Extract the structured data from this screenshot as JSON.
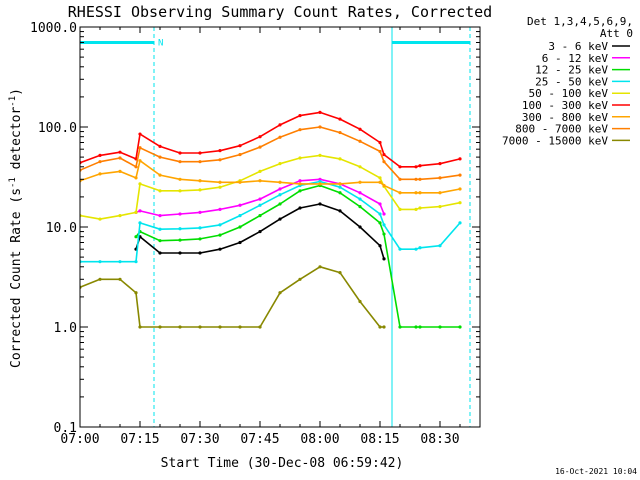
{
  "chart_data": {
    "type": "line",
    "title": "RHESSI Observing Summary Count Rates, Corrected",
    "xlabel": "Start Time (30-Dec-08 06:59:42)",
    "ylabel_main": "Corrected Count Rate (s",
    "ylabel_exp1": "-1",
    "ylabel_mid": " detector",
    "ylabel_exp2": "-1",
    "ylabel_close": ")",
    "yscale": "log",
    "ylim": [
      0.1,
      1000
    ],
    "xlim_minutes": [
      0,
      100
    ],
    "x_ticks": [
      {
        "t": 0,
        "label": "07:00"
      },
      {
        "t": 15,
        "label": "07:15"
      },
      {
        "t": 30,
        "label": "07:30"
      },
      {
        "t": 45,
        "label": "07:45"
      },
      {
        "t": 60,
        "label": "08:00"
      },
      {
        "t": 75,
        "label": "08:15"
      },
      {
        "t": 90,
        "label": "08:30"
      }
    ],
    "y_ticks": [
      {
        "v": 0.1,
        "label": "0.1"
      },
      {
        "v": 1,
        "label": "1.0"
      },
      {
        "v": 10,
        "label": "10.0"
      },
      {
        "v": 100,
        "label": "100.0"
      },
      {
        "v": 1000,
        "label": "1000.0"
      }
    ],
    "legend_header": [
      "Det 1,3,4,5,6,9,",
      "Att 0"
    ],
    "legend_position": "right",
    "timestamp": "16-Oct-2021 10:04",
    "annotations": [
      {
        "t": 19,
        "label": "N"
      }
    ],
    "night_bar": {
      "color": "#00e5ee",
      "segments": [
        [
          0,
          18.5
        ],
        [
          78,
          97.5
        ]
      ],
      "level": 700
    },
    "dashed_markers": {
      "color": "#00e5ee",
      "times": [
        18.5,
        97.5
      ]
    },
    "solid_markers": {
      "color": "#00e5ee",
      "times": [
        0,
        78
      ]
    },
    "time_points": [
      0,
      5,
      10,
      14,
      15,
      20,
      25,
      30,
      35,
      40,
      45,
      50,
      55,
      60,
      65,
      70,
      75,
      76,
      80,
      84,
      85,
      90,
      95
    ],
    "series": [
      {
        "name": "3 - 6 keV",
        "color": "#000000",
        "values": [
          null,
          null,
          null,
          6,
          8,
          5.5,
          5.5,
          5.5,
          6,
          7,
          9,
          12,
          15.5,
          17,
          14.5,
          10,
          6.5,
          4.8,
          null,
          null,
          null,
          null,
          null
        ]
      },
      {
        "name": "6 - 12 keV",
        "color": "#ff00ff",
        "values": [
          null,
          null,
          null,
          14,
          14.5,
          13,
          13.5,
          14,
          15,
          16.5,
          19,
          24,
          29,
          30,
          27,
          22,
          17,
          13.5,
          null,
          null,
          null,
          null,
          null
        ]
      },
      {
        "name": "12 - 25 keV",
        "color": "#00dd00",
        "values": [
          null,
          null,
          null,
          8,
          9,
          7.3,
          7.4,
          7.6,
          8.3,
          10,
          13,
          17,
          23,
          26,
          22,
          16,
          11,
          8.5,
          1,
          1,
          1,
          1,
          1
        ]
      },
      {
        "name": "25 - 50 keV",
        "color": "#00e5ee",
        "values": [
          4.5,
          4.5,
          4.5,
          4.5,
          11,
          9.5,
          9.6,
          9.8,
          10.5,
          13,
          16.5,
          21,
          26,
          28.5,
          25,
          19,
          13.5,
          10.5,
          6,
          6,
          6.2,
          6.5,
          11
        ]
      },
      {
        "name": "50 - 100 keV",
        "color": "#e5e500",
        "values": [
          13,
          12,
          13,
          14,
          27,
          23,
          23,
          23.5,
          25,
          29,
          36,
          43,
          49,
          52,
          48,
          40,
          31,
          25.5,
          15,
          15,
          15.5,
          16,
          17.5
        ]
      },
      {
        "name": "100 - 300 keV",
        "color": "#ff0000",
        "values": [
          44,
          52,
          56,
          48,
          85,
          64,
          55,
          55,
          58,
          65,
          80,
          105,
          130,
          140,
          120,
          95,
          70,
          53,
          40,
          40,
          41,
          43,
          48
        ]
      },
      {
        "name": "300 - 800 keV",
        "color": "#ffa500",
        "values": [
          29,
          34,
          36,
          31,
          46,
          33,
          30,
          29,
          28,
          28,
          29,
          28,
          27,
          27,
          27,
          28,
          28,
          26,
          22,
          22,
          22,
          22,
          24
        ]
      },
      {
        "name": "800 - 7000 keV",
        "color": "#ff7f00",
        "values": [
          37,
          45,
          49,
          40,
          62,
          50,
          45,
          45,
          47,
          53,
          63,
          79,
          94,
          100,
          88,
          72,
          57,
          45,
          30,
          30,
          30,
          31,
          33
        ]
      },
      {
        "name": "7000 - 15000 keV",
        "color": "#888800",
        "values": [
          2.5,
          3,
          3,
          2.2,
          1,
          1,
          1,
          1,
          1,
          1,
          1,
          2.2,
          3,
          4,
          3.5,
          1.8,
          1,
          1,
          null,
          null,
          null,
          null,
          null
        ]
      }
    ]
  }
}
